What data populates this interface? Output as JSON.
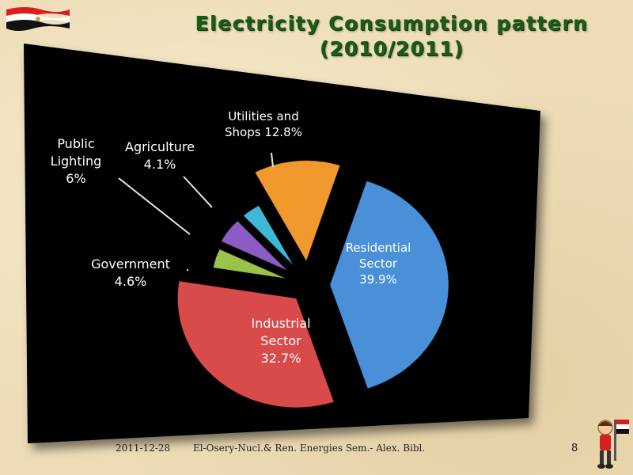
{
  "slide": {
    "title_line1": "Electricity  Consumption pattern",
    "title_line2": "(2010/2011)",
    "footer_date": "2011-12-28",
    "footer_text": "El-Osery-Nucl.& Ren. Energies Sem.- Alex. Bibl.",
    "page_number": "8"
  },
  "colors": {
    "title": "#1b5c16",
    "panel": "#000000"
  },
  "chart_data": {
    "type": "pie",
    "title": "Electricity  Consumption pattern (2010/2011)",
    "unit": "%",
    "slices": [
      {
        "name": "Residential Sector",
        "label_lines": [
          "Residential",
          "Sector",
          "39.9%"
        ],
        "value": 39.9,
        "color": "#4a90d9"
      },
      {
        "name": "Industrial Sector",
        "label_lines": [
          "Industrial",
          "Sector",
          "32.7%"
        ],
        "value": 32.7,
        "color": "#d94a4a"
      },
      {
        "name": "Government",
        "label_lines": [
          "Government",
          "4.6%"
        ],
        "value": 4.6,
        "color": "#9bc34a"
      },
      {
        "name": "Public Lighting",
        "label_lines": [
          "Public",
          "Lighting",
          "6%"
        ],
        "value": 6,
        "color": "#8a5cc4"
      },
      {
        "name": "Agriculture",
        "label_lines": [
          "Agriculture",
          "4.1%"
        ],
        "value": 4.1,
        "color": "#3fb8d6"
      },
      {
        "name": "Utilities and Shops",
        "label_lines": [
          "Utilities and",
          "Shops 12.8%"
        ],
        "value": 12.8,
        "color": "#f2992e"
      }
    ]
  }
}
